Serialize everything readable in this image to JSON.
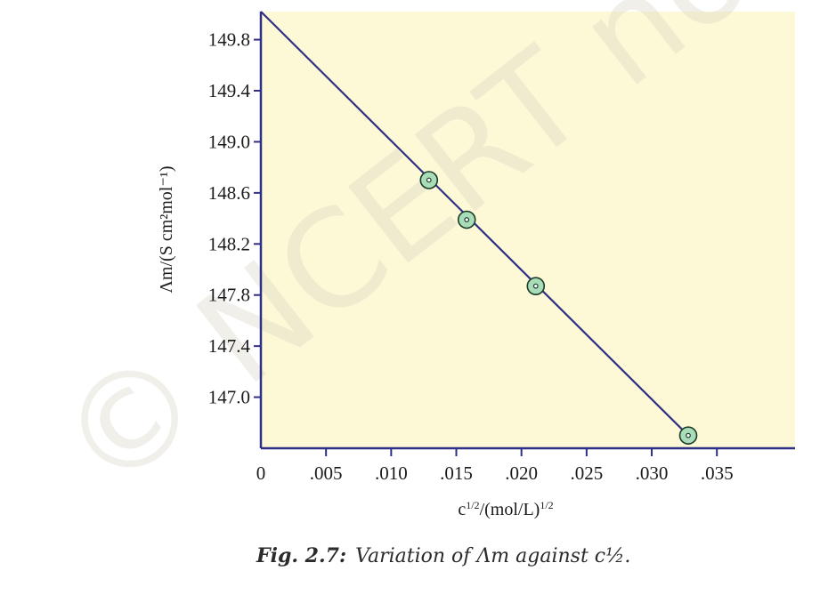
{
  "chart_data": {
    "type": "line",
    "xlabel_base": "c",
    "xlabel_exp": "1/2",
    "xlabel_mid": "/(mol/L)",
    "xlabel_exp2": "1/2",
    "ylabel_text": "Λm/(S cm²mol⁻¹)",
    "x_ticks": [
      "0",
      ".005",
      ".010",
      ".015",
      ".020",
      ".025",
      ".030",
      ".035"
    ],
    "x_tick_values": [
      0,
      0.005,
      0.01,
      0.015,
      0.02,
      0.025,
      0.03,
      0.035
    ],
    "y_ticks": [
      "149.8",
      "149.4",
      "149.0",
      "148.6",
      "148.2",
      "147.8",
      "147.4",
      "147.0"
    ],
    "y_tick_values": [
      149.8,
      149.4,
      149.0,
      148.6,
      148.2,
      147.8,
      147.4,
      147.0
    ],
    "xlim": [
      0,
      0.041
    ],
    "ylim": [
      146.6,
      150.02
    ],
    "series": [
      {
        "points": [
          {
            "x": 0.0129,
            "y": 148.7
          },
          {
            "x": 0.0158,
            "y": 148.39
          },
          {
            "x": 0.0211,
            "y": 147.87
          },
          {
            "x": 0.0328,
            "y": 146.7
          }
        ],
        "fit_line": [
          {
            "x": 0,
            "y": 150.02
          },
          {
            "x": 0.0328,
            "y": 146.7
          }
        ]
      }
    ],
    "colors": {
      "plot_background": "#fdf8d5",
      "line": "#2e2f86",
      "marker_fill": "#a9ddb7",
      "marker_stroke": "#1a3a2a"
    },
    "watermark": "© NCERT not to be republished"
  },
  "caption": {
    "figure": "Fig. 2.7:",
    "description": "Variation of Λm against c½."
  }
}
